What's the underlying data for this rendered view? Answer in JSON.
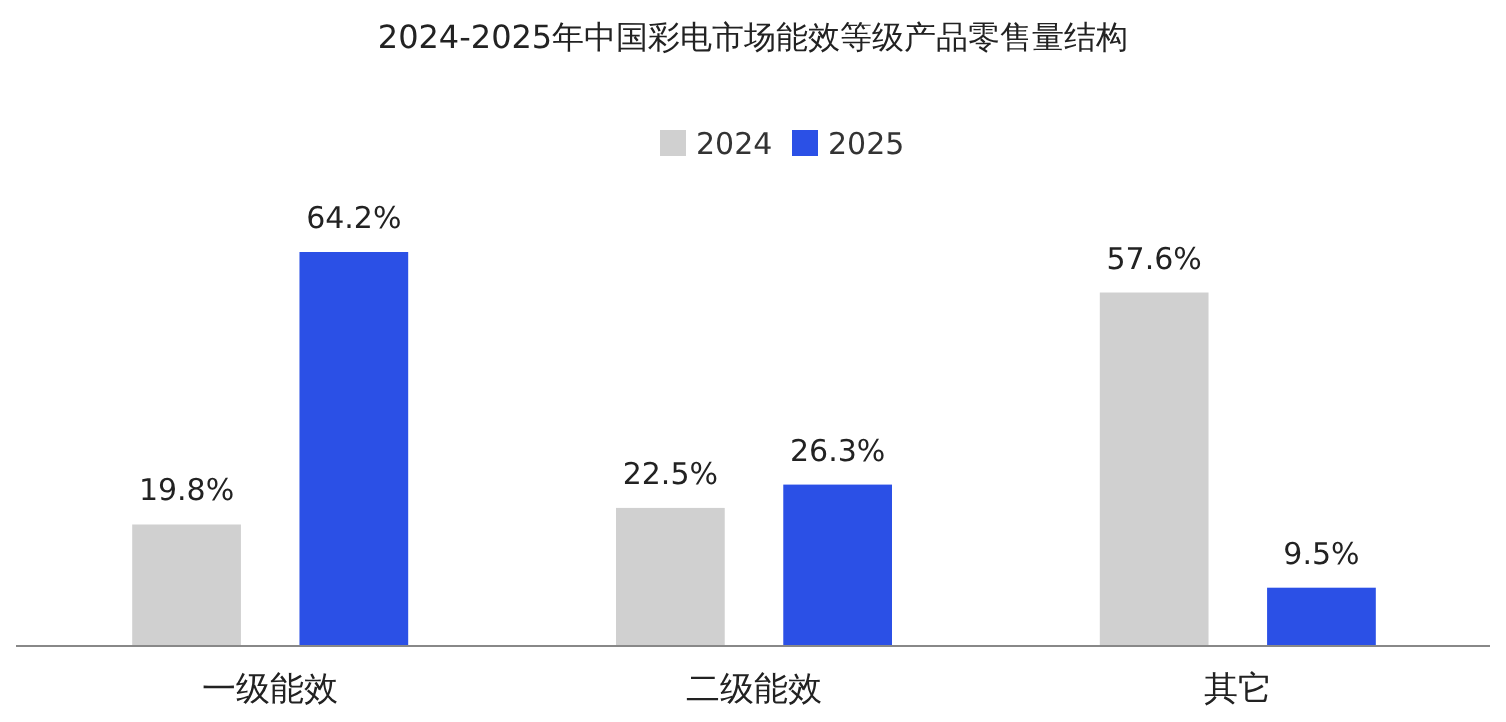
{
  "chart_data": {
    "type": "bar",
    "title": "2024-2025年中国彩电市场能效等级产品零售量结构",
    "categories": [
      "一级能效",
      "二级能效",
      "其它"
    ],
    "series": [
      {
        "name": "2024",
        "color": "#d0d0d0",
        "values": [
          19.8,
          22.5,
          57.6
        ],
        "value_labels": [
          "19.8%",
          "22.5%",
          "57.6%"
        ]
      },
      {
        "name": "2025",
        "color": "#2b50e6",
        "values": [
          64.2,
          26.3,
          9.5
        ],
        "value_labels": [
          "64.2%",
          "26.3%",
          "9.5%"
        ]
      }
    ],
    "legend": "top",
    "grid": false
  }
}
